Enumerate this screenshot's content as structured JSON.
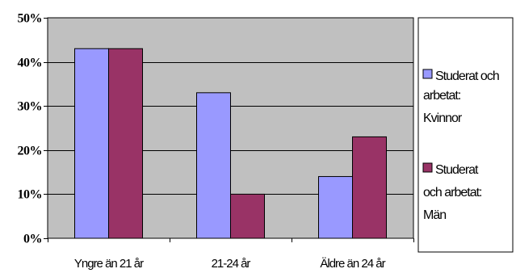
{
  "chart_data": {
    "type": "bar",
    "categories": [
      "Yngre än 21 år",
      "21-24 år",
      "Äldre än 24 år"
    ],
    "series": [
      {
        "name": "Studerat och arbetat: Kvinnor",
        "values": [
          43,
          33,
          14
        ],
        "color": "#9999ff"
      },
      {
        "name": "Studerat och arbetat: Män",
        "values": [
          43,
          10,
          23
        ],
        "color": "#993366"
      }
    ],
    "yticks": [
      "0%",
      "10%",
      "20%",
      "30%",
      "40%",
      "50%"
    ],
    "ylim": [
      0,
      50
    ],
    "grid": true,
    "plot_background": "#c0c0c0",
    "legend_placement": "right",
    "legend_lines": [
      [
        "Studerat och",
        "arbetat:",
        "Kvinnor"
      ],
      [
        "Studerat",
        "och arbetat:",
        "Män"
      ]
    ]
  }
}
